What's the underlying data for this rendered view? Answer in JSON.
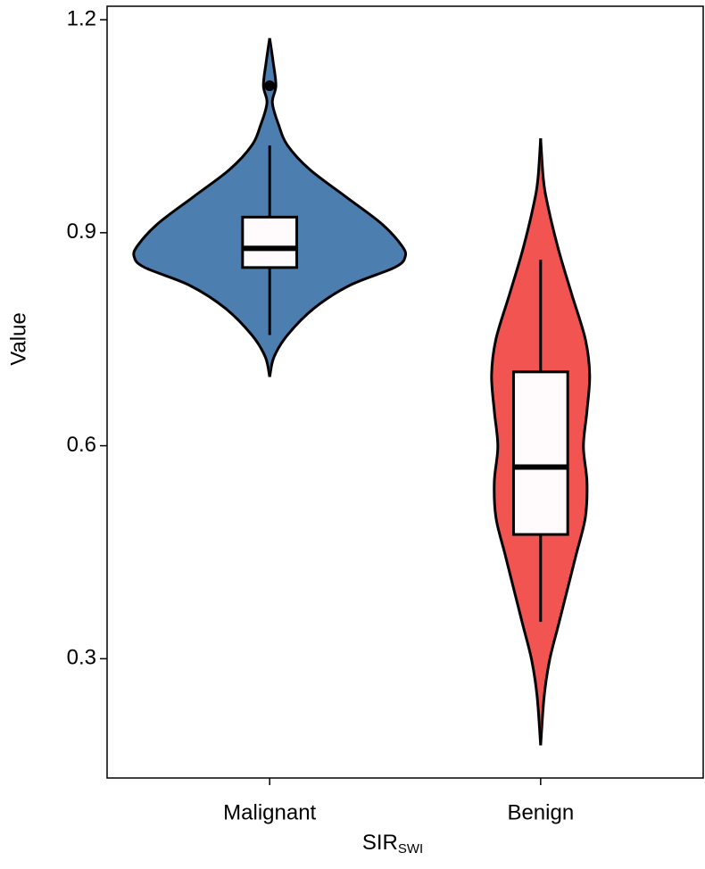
{
  "chart_data": {
    "type": "violin",
    "x_label": {
      "text": "SIR",
      "subscript": "SWI"
    },
    "y_label": "Value",
    "categories": [
      "Malignant",
      "Benign"
    ],
    "ylim": [
      0.132,
      1.219
    ],
    "yticks": [
      0.3,
      0.6,
      0.9,
      1.2
    ],
    "box_fill": "#fffafc",
    "series": [
      {
        "name": "Malignant",
        "color": "#4d7eb0",
        "violin_y": [
          1.174,
          1.14,
          1.107,
          1.083,
          1.052,
          1.023,
          0.989,
          0.951,
          0.913,
          0.882,
          0.866,
          0.851,
          0.826,
          0.794,
          0.756,
          0.725,
          0.697
        ],
        "violin_width": [
          0,
          0.013,
          0.023,
          0.01,
          0.033,
          0.066,
          0.148,
          0.28,
          0.412,
          0.487,
          0.5,
          0.461,
          0.296,
          0.165,
          0.066,
          0.016,
          0
        ],
        "whisker_low": 0.756,
        "q1": 0.851,
        "median": 0.878,
        "q3": 0.922,
        "whisker_high": 1.023,
        "outliers": [
          1.107
        ]
      },
      {
        "name": "Benign",
        "color": "#f25452",
        "violin_y": [
          1.033,
          0.976,
          0.939,
          0.876,
          0.813,
          0.75,
          0.7,
          0.649,
          0.599,
          0.549,
          0.499,
          0.448,
          0.398,
          0.348,
          0.298,
          0.247,
          0.178
        ],
        "violin_width": [
          0,
          0.01,
          0.026,
          0.066,
          0.115,
          0.165,
          0.181,
          0.171,
          0.158,
          0.171,
          0.165,
          0.132,
          0.099,
          0.066,
          0.033,
          0.013,
          0
        ],
        "whisker_low": 0.352,
        "q1": 0.475,
        "median": 0.57,
        "q3": 0.704,
        "whisker_high": 0.862,
        "outliers": []
      }
    ]
  }
}
